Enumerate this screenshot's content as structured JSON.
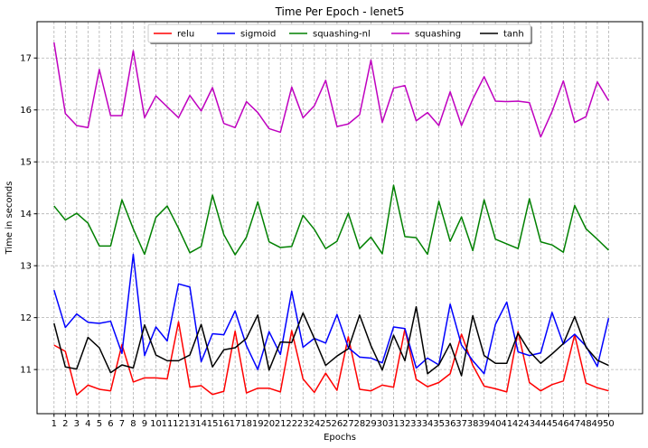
{
  "chart_data": {
    "type": "line",
    "title": "Time Per Epoch - lenet5",
    "xlabel": "Epochs",
    "ylabel": "Time in seconds",
    "x": [
      1,
      2,
      3,
      4,
      5,
      6,
      7,
      8,
      9,
      10,
      11,
      12,
      13,
      14,
      15,
      16,
      17,
      18,
      19,
      20,
      21,
      22,
      23,
      24,
      25,
      26,
      27,
      28,
      29,
      30,
      31,
      32,
      33,
      34,
      35,
      36,
      37,
      38,
      39,
      40,
      41,
      42,
      43,
      44,
      45,
      46,
      47,
      48,
      49,
      50
    ],
    "xlim": [
      -0.5,
      53.0
    ],
    "ylim": [
      10.15,
      17.7
    ],
    "yticks": [
      11,
      12,
      13,
      14,
      15,
      16,
      17
    ],
    "grid": true,
    "legend": "top-center",
    "series": [
      {
        "name": "relu",
        "color": "#ff0000",
        "values": [
          11.47,
          11.35,
          10.51,
          10.7,
          10.62,
          10.59,
          11.48,
          10.76,
          10.84,
          10.84,
          10.82,
          11.92,
          10.66,
          10.69,
          10.52,
          10.58,
          11.74,
          10.55,
          10.64,
          10.64,
          10.57,
          11.75,
          10.82,
          10.56,
          10.93,
          10.6,
          11.63,
          10.62,
          10.59,
          10.7,
          10.66,
          11.78,
          10.81,
          10.67,
          10.75,
          10.92,
          11.68,
          11.08,
          10.68,
          10.63,
          10.57,
          11.73,
          10.75,
          10.59,
          10.71,
          10.78,
          11.67,
          10.74,
          10.65,
          10.59
        ]
      },
      {
        "name": "sigmoid",
        "color": "#0000ff",
        "values": [
          12.53,
          11.81,
          12.07,
          11.91,
          11.89,
          11.93,
          11.31,
          13.22,
          11.27,
          11.82,
          11.55,
          12.65,
          12.59,
          11.15,
          11.69,
          11.67,
          12.13,
          11.46,
          11.0,
          11.73,
          11.29,
          12.51,
          11.43,
          11.6,
          11.51,
          12.06,
          11.42,
          11.24,
          11.22,
          11.13,
          11.82,
          11.79,
          11.03,
          11.22,
          11.09,
          12.26,
          11.47,
          11.17,
          10.92,
          11.87,
          12.3,
          11.34,
          11.27,
          11.32,
          12.1,
          11.49,
          11.68,
          11.45,
          11.06,
          11.99
        ]
      },
      {
        "name": "squashing-nl",
        "color": "#008000",
        "values": [
          14.15,
          13.88,
          14.01,
          13.82,
          13.38,
          13.38,
          14.27,
          13.71,
          13.22,
          13.93,
          14.15,
          13.72,
          13.25,
          13.37,
          14.36,
          13.6,
          13.21,
          13.55,
          14.23,
          13.46,
          13.35,
          13.37,
          13.97,
          13.7,
          13.33,
          13.47,
          14.01,
          13.33,
          13.55,
          13.23,
          14.55,
          13.56,
          13.54,
          13.22,
          14.24,
          13.47,
          13.94,
          13.29,
          14.27,
          13.51,
          13.42,
          13.33,
          14.29,
          13.46,
          13.4,
          13.26,
          14.16,
          13.71,
          13.51,
          13.3
        ]
      },
      {
        "name": "squashing",
        "color": "#bf00bf",
        "values": [
          17.3,
          15.93,
          15.7,
          15.66,
          16.78,
          15.89,
          15.89,
          17.14,
          15.85,
          16.27,
          16.06,
          15.85,
          16.28,
          15.98,
          16.43,
          15.74,
          15.66,
          16.16,
          15.95,
          15.64,
          15.57,
          16.44,
          15.85,
          16.08,
          16.57,
          15.68,
          15.73,
          15.91,
          16.96,
          15.76,
          16.42,
          16.47,
          15.79,
          15.95,
          15.7,
          16.35,
          15.7,
          16.21,
          16.64,
          16.17,
          16.16,
          16.17,
          16.14,
          15.48,
          15.97,
          16.56,
          15.76,
          15.87,
          16.54,
          16.18
        ]
      },
      {
        "name": "tanh",
        "color": "#000000",
        "values": [
          11.89,
          11.05,
          11.01,
          11.62,
          11.42,
          10.94,
          11.09,
          11.03,
          11.86,
          11.28,
          11.17,
          11.17,
          11.28,
          11.87,
          11.05,
          11.38,
          11.42,
          11.6,
          12.05,
          10.99,
          11.53,
          11.52,
          12.09,
          11.6,
          11.08,
          11.26,
          11.4,
          12.05,
          11.46,
          10.99,
          11.66,
          11.17,
          12.21,
          10.92,
          11.09,
          11.5,
          10.88,
          12.04,
          11.27,
          11.12,
          11.12,
          11.7,
          11.35,
          11.12,
          11.3,
          11.5,
          12.02,
          11.43,
          11.18,
          11.08
        ]
      }
    ]
  }
}
